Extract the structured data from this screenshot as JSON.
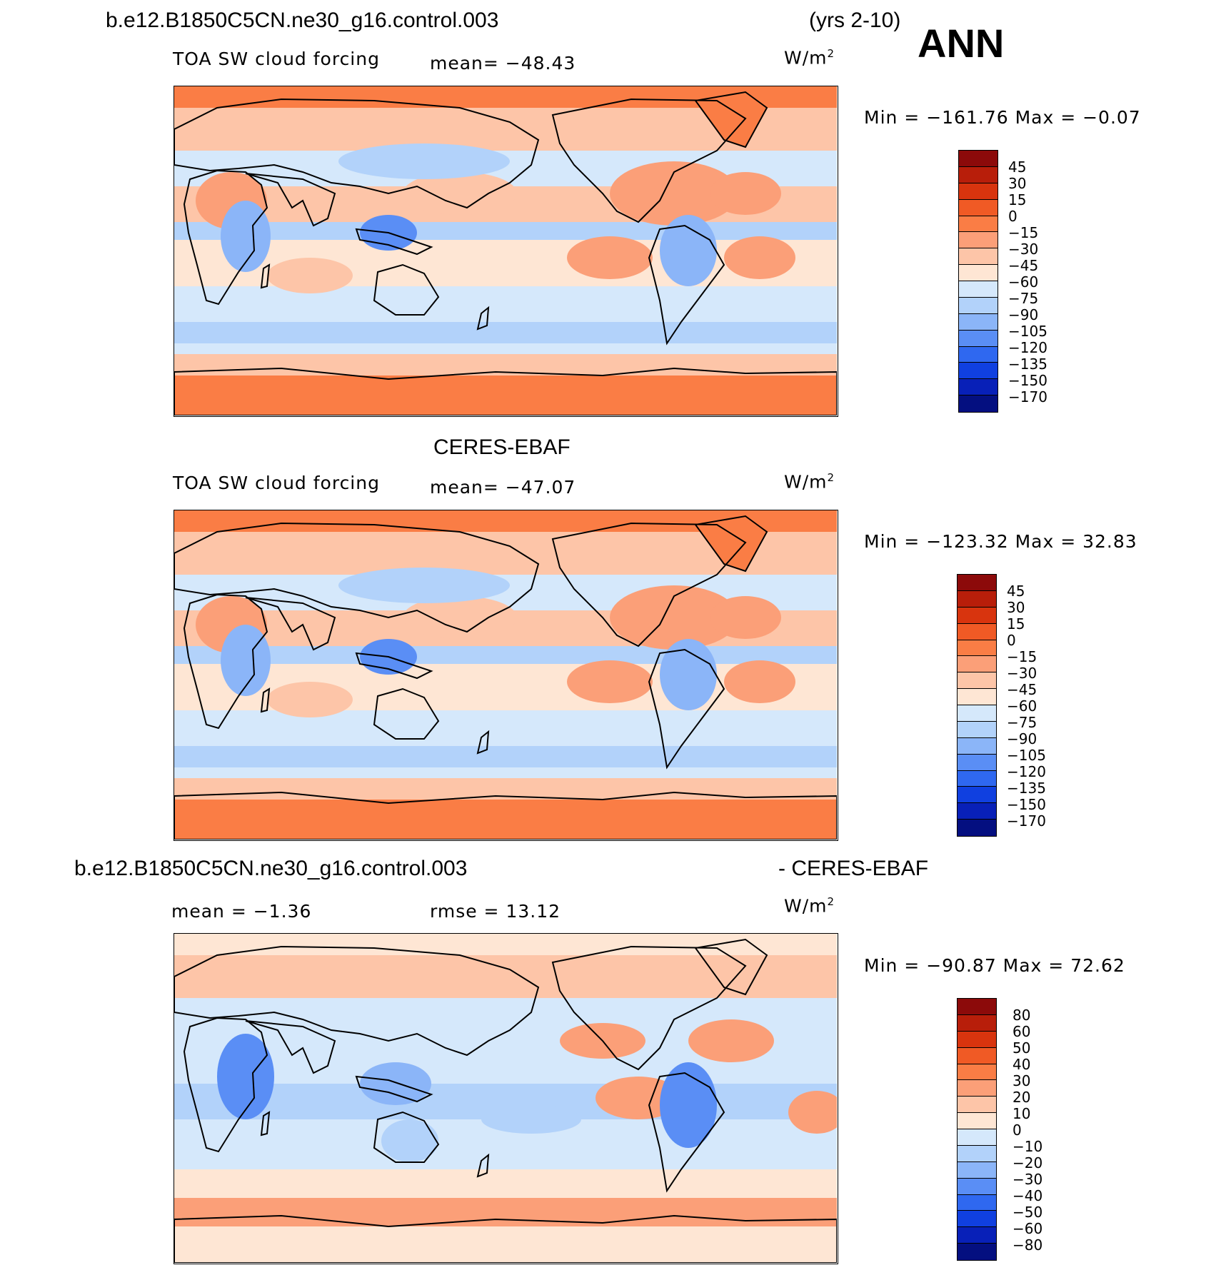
{
  "header": {
    "case_name": "b.e12.B1850C5CN.ne30_g16.control.003",
    "years": "(yrs 2-10)",
    "season": "ANN"
  },
  "panels": [
    {
      "title": "",
      "variable": "TOA SW cloud forcing",
      "stat": "mean=  −48.43",
      "units": "W/m",
      "units_sup": "2",
      "minmax": "Min  =  −161.76  Max  =    −0.07",
      "levels": [
        "45",
        "30",
        "15",
        "0",
        "−15",
        "−30",
        "−45",
        "−60",
        "−75",
        "−90",
        "−105",
        "−120",
        "−135",
        "−150",
        "−170"
      ],
      "colors": [
        "#8c0a0a",
        "#b81e0a",
        "#d8340e",
        "#f05a25",
        "#fa7d45",
        "#fb9f78",
        "#fdc5a8",
        "#fee6d4",
        "#d5e8fb",
        "#b2d2fa",
        "#8bb5f8",
        "#5a8ef5",
        "#2f68f0",
        "#1040e0",
        "#0820b8",
        "#040f80"
      ]
    },
    {
      "title": "CERES-EBAF",
      "variable": "TOA SW cloud forcing",
      "stat": "mean=  −47.07",
      "units": "W/m",
      "units_sup": "2",
      "minmax": "Min  =  −123.32  Max  =    32.83",
      "levels": [
        "45",
        "30",
        "15",
        "0",
        "−15",
        "−30",
        "−45",
        "−60",
        "−75",
        "−90",
        "−105",
        "−120",
        "−135",
        "−150",
        "−170"
      ],
      "colors": [
        "#8c0a0a",
        "#b81e0a",
        "#d8340e",
        "#f05a25",
        "#fa7d45",
        "#fb9f78",
        "#fdc5a8",
        "#fee6d4",
        "#d5e8fb",
        "#b2d2fa",
        "#8bb5f8",
        "#5a8ef5",
        "#2f68f0",
        "#1040e0",
        "#0820b8",
        "#040f80"
      ]
    },
    {
      "title_left": "b.e12.B1850C5CN.ne30_g16.control.003",
      "title_right": "- CERES-EBAF",
      "stat_mean": "mean  =    −1.36",
      "stat_rmse": "rmse  =    13.12",
      "units": "W/m",
      "units_sup": "2",
      "minmax": "Min  =  −90.87  Max  =    72.62",
      "levels": [
        "80",
        "60",
        "50",
        "40",
        "30",
        "20",
        "10",
        "0",
        "−10",
        "−20",
        "−30",
        "−40",
        "−50",
        "−60",
        "−80"
      ],
      "colors": [
        "#8c0a0a",
        "#b81e0a",
        "#d8340e",
        "#f05a25",
        "#fa7d45",
        "#fb9f78",
        "#fdc5a8",
        "#fee6d4",
        "#d5e8fb",
        "#b2d2fa",
        "#8bb5f8",
        "#5a8ef5",
        "#2f68f0",
        "#1040e0",
        "#0820b8",
        "#040f80"
      ]
    }
  ]
}
